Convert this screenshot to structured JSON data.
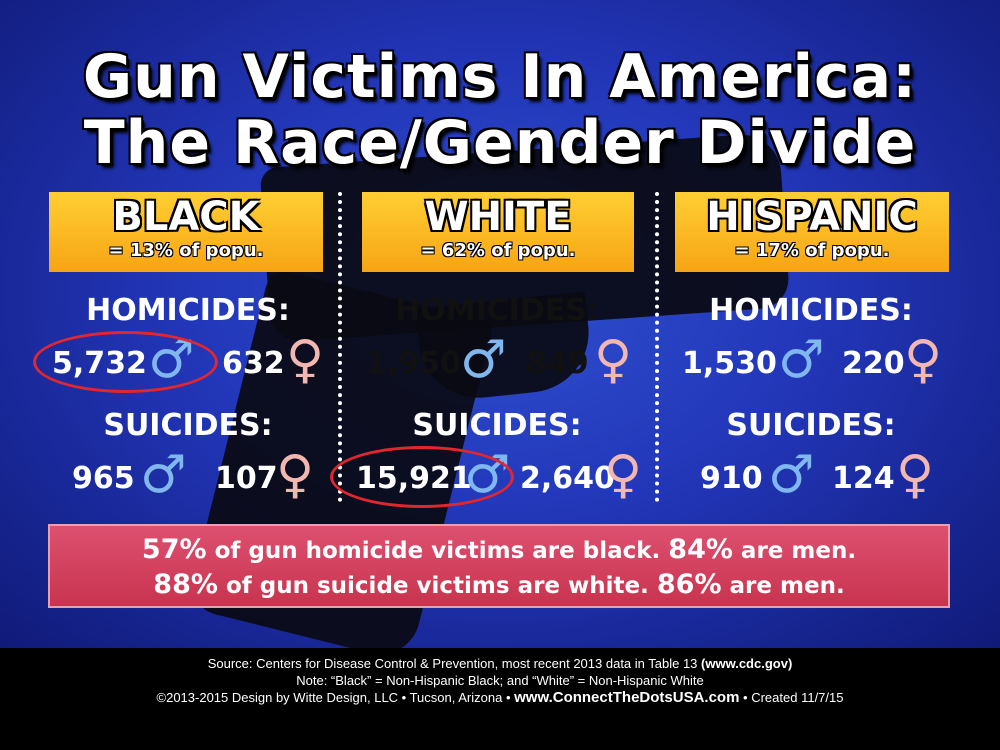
{
  "title": {
    "line1": "Gun Victims In America:",
    "line2": "The Race/Gender Divide"
  },
  "labels": {
    "homicides": "HOMICIDES:",
    "suicides": "SUICIDES:"
  },
  "symbols": {
    "male": "♂",
    "female": "♀"
  },
  "groups": [
    {
      "race": "BLACK",
      "population": "= 13% of popu.",
      "homicides": {
        "male": "5,732",
        "female": "632"
      },
      "suicides": {
        "male": "965",
        "female": "107"
      }
    },
    {
      "race": "WHITE",
      "population": "= 62% of popu.",
      "homicides": {
        "male": "1,950",
        "female": "849"
      },
      "suicides": {
        "male": "15,921",
        "female": "2,640"
      }
    },
    {
      "race": "HISPANIC",
      "population": "= 17% of popu.",
      "homicides": {
        "male": "1,530",
        "female": "220"
      },
      "suicides": {
        "male": "910",
        "female": "124"
      }
    }
  ],
  "summary": {
    "line1_pct1": "57%",
    "line1_text1": " of gun homicide victims are black. ",
    "line1_pct2": "84%",
    "line1_text2": " are men.",
    "line2_pct1": "88%",
    "line2_text1": " of gun suicide victims are white. ",
    "line2_pct2": "86%",
    "line2_text2": " are men."
  },
  "footer": {
    "source_text": "Source: Centers for Disease Control & Prevention, most recent 2013 data in Table 13 ",
    "source_link": "(www.cdc.gov)",
    "note": "Note: “Black” = Non-Hispanic Black; and “White” = Non-Hispanic White",
    "copyright": "©2013-2015 Design by Witte Design, LLC • Tucson, Arizona •",
    "website": "www.ConnectTheDotsUSA.com",
    "created": "• Created 11/7/15"
  },
  "colors": {
    "background": "#2236b8",
    "header": "#f9b21f",
    "male_symbol": "#7fb7ee",
    "female_symbol": "#f2b7b0",
    "highlight_circle": "#e2262e",
    "summary_box": "#d2405c"
  }
}
